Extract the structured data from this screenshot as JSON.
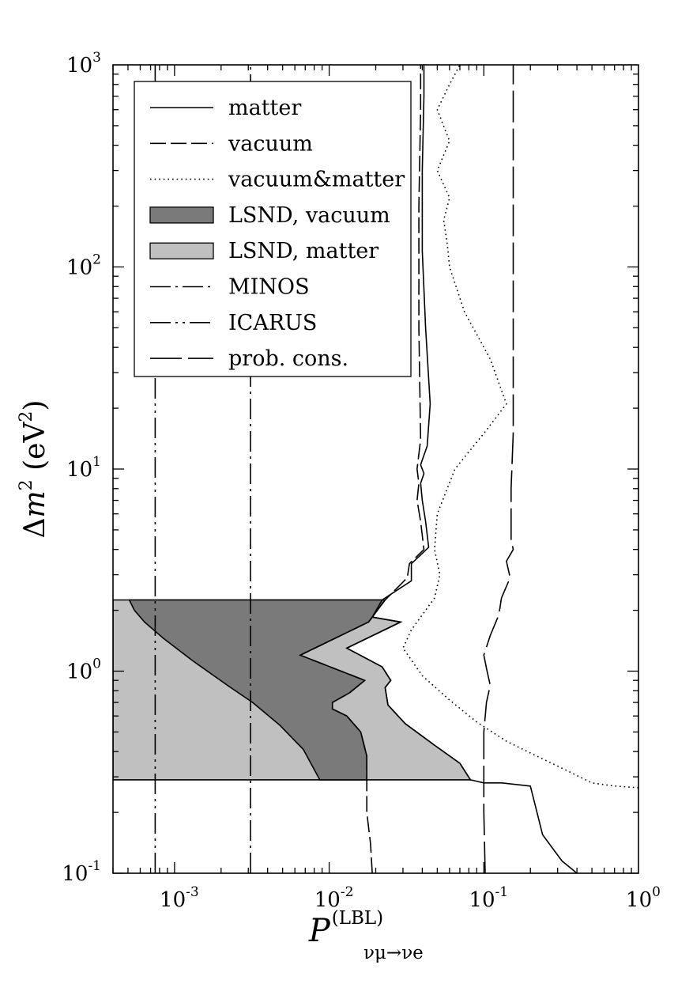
{
  "chart_data": {
    "type": "line",
    "title": "",
    "x_axis": {
      "label_base": "P",
      "label_superscript": "(LBL)",
      "label_subscript": "νμ→νe",
      "scale": "log",
      "range": [
        0.0004,
        1
      ],
      "ticks": [
        {
          "value": 0.001,
          "base": "10",
          "exp": "-3"
        },
        {
          "value": 0.01,
          "base": "10",
          "exp": "-2"
        },
        {
          "value": 0.1,
          "base": "10",
          "exp": "-1"
        },
        {
          "value": 1,
          "base": "10",
          "exp": "0"
        }
      ]
    },
    "y_axis": {
      "label_delta": "Δ",
      "label_m": "m",
      "label_m_exp": "2",
      "label_unit_open": " (eV",
      "label_unit_exp": "2",
      "label_unit_close": ")",
      "scale": "log",
      "range": [
        0.1,
        1000
      ],
      "ticks": [
        {
          "value": 0.1,
          "base": "10",
          "exp": "-1"
        },
        {
          "value": 1,
          "base": "10",
          "exp": "0"
        },
        {
          "value": 10,
          "base": "10",
          "exp": "1"
        },
        {
          "value": 100,
          "base": "10",
          "exp": "2"
        },
        {
          "value": 1000,
          "base": "10",
          "exp": "3"
        }
      ]
    },
    "grid": false,
    "legend": {
      "position": "top-left",
      "entries": [
        {
          "label": "matter",
          "style": "solid"
        },
        {
          "label": "vacuum",
          "style": "dashed"
        },
        {
          "label": "vacuum&matter",
          "style": "dotted"
        },
        {
          "label": "LSND, vacuum",
          "style": "fill-dark"
        },
        {
          "label": "LSND, matter",
          "style": "fill-light"
        },
        {
          "label": "MINOS",
          "style": "dashdot"
        },
        {
          "label": "ICARUS",
          "style": "dashdotdot"
        },
        {
          "label": "prob. cons.",
          "style": "longdash"
        }
      ]
    },
    "colors": {
      "lsnd_vacuum": "#7a7a7a",
      "lsnd_matter": "#c0c0c0",
      "line": "#000000"
    },
    "regions": [
      {
        "name": "LSND, matter",
        "points": [
          [
            0.0004,
            0.29
          ],
          [
            0.0004,
            2.25
          ],
          [
            0.022,
            2.25
          ],
          [
            0.019,
            1.85
          ],
          [
            0.029,
            1.75
          ],
          [
            0.013,
            1.3
          ],
          [
            0.022,
            1.05
          ],
          [
            0.025,
            0.9
          ],
          [
            0.023,
            0.83
          ],
          [
            0.024,
            0.68
          ],
          [
            0.031,
            0.55
          ],
          [
            0.048,
            0.43
          ],
          [
            0.07,
            0.35
          ],
          [
            0.082,
            0.29
          ]
        ]
      },
      {
        "name": "LSND, vacuum",
        "points": [
          [
            0.00051,
            2.25
          ],
          [
            0.00055,
            2.0
          ],
          [
            0.00064,
            1.75
          ],
          [
            0.00085,
            1.45
          ],
          [
            0.0013,
            1.13
          ],
          [
            0.0022,
            0.85
          ],
          [
            0.0032,
            0.7
          ],
          [
            0.0048,
            0.54
          ],
          [
            0.0068,
            0.41
          ],
          [
            0.0087,
            0.29
          ],
          [
            0.0175,
            0.29
          ],
          [
            0.0175,
            0.38
          ],
          [
            0.016,
            0.5
          ],
          [
            0.013,
            0.6
          ],
          [
            0.0105,
            0.65
          ],
          [
            0.0105,
            0.7
          ],
          [
            0.0135,
            0.78
          ],
          [
            0.017,
            0.9
          ],
          [
            0.0065,
            1.2
          ],
          [
            0.018,
            1.75
          ],
          [
            0.023,
            2.25
          ]
        ]
      }
    ],
    "series": [
      {
        "name": "matter",
        "style": "solid",
        "points": [
          [
            0.4,
            0.1
          ],
          [
            0.32,
            0.115
          ],
          [
            0.24,
            0.155
          ],
          [
            0.2,
            0.27
          ],
          [
            0.13,
            0.28
          ],
          [
            0.1,
            0.28
          ],
          [
            0.082,
            0.29
          ],
          [
            0.07,
            0.35
          ],
          [
            0.048,
            0.43
          ],
          [
            0.031,
            0.55
          ],
          [
            0.024,
            0.68
          ],
          [
            0.023,
            0.83
          ],
          [
            0.025,
            0.9
          ],
          [
            0.022,
            1.05
          ],
          [
            0.013,
            1.3
          ],
          [
            0.029,
            1.75
          ],
          [
            0.019,
            1.85
          ],
          [
            0.022,
            2.25
          ],
          [
            0.034,
            2.8
          ],
          [
            0.034,
            3.4
          ],
          [
            0.044,
            4.1
          ],
          [
            0.042,
            5.5
          ],
          [
            0.04,
            7.0
          ],
          [
            0.039,
            8.5
          ],
          [
            0.041,
            9.5
          ],
          [
            0.039,
            10.5
          ],
          [
            0.043,
            13
          ],
          [
            0.045,
            21
          ],
          [
            0.042,
            50
          ],
          [
            0.04,
            120
          ],
          [
            0.04,
            300
          ],
          [
            0.041,
            700
          ],
          [
            0.041,
            1000
          ]
        ]
      },
      {
        "name": "vacuum",
        "style": "dashed",
        "points": [
          [
            0.019,
            0.1
          ],
          [
            0.0185,
            0.14
          ],
          [
            0.0175,
            0.2
          ],
          [
            0.0175,
            0.38
          ],
          [
            0.016,
            0.5
          ],
          [
            0.013,
            0.6
          ],
          [
            0.0105,
            0.65
          ],
          [
            0.0105,
            0.7
          ],
          [
            0.0135,
            0.78
          ],
          [
            0.017,
            0.9
          ],
          [
            0.0065,
            1.2
          ],
          [
            0.018,
            1.75
          ],
          [
            0.023,
            2.25
          ],
          [
            0.032,
            2.9
          ],
          [
            0.033,
            3.4
          ],
          [
            0.041,
            4.0
          ],
          [
            0.039,
            5.5
          ],
          [
            0.037,
            7.0
          ],
          [
            0.038,
            8.5
          ],
          [
            0.037,
            10
          ],
          [
            0.039,
            14
          ],
          [
            0.038,
            50
          ],
          [
            0.038,
            200
          ],
          [
            0.039,
            600
          ],
          [
            0.039,
            1000
          ]
        ]
      },
      {
        "name": "vacuum&matter",
        "style": "dotted",
        "points": [
          [
            1,
            0.265
          ],
          [
            0.7,
            0.27
          ],
          [
            0.5,
            0.28
          ],
          [
            0.35,
            0.32
          ],
          [
            0.22,
            0.38
          ],
          [
            0.14,
            0.45
          ],
          [
            0.09,
            0.56
          ],
          [
            0.06,
            0.72
          ],
          [
            0.04,
            0.95
          ],
          [
            0.03,
            1.3
          ],
          [
            0.034,
            1.6
          ],
          [
            0.04,
            1.9
          ],
          [
            0.048,
            2.3
          ],
          [
            0.052,
            3.0
          ],
          [
            0.048,
            4.0
          ],
          [
            0.05,
            6.0
          ],
          [
            0.065,
            10
          ],
          [
            0.1,
            15
          ],
          [
            0.14,
            21
          ],
          [
            0.11,
            35
          ],
          [
            0.075,
            60
          ],
          [
            0.06,
            100
          ],
          [
            0.058,
            130
          ],
          [
            0.055,
            170
          ],
          [
            0.06,
            220
          ],
          [
            0.05,
            300
          ],
          [
            0.06,
            420
          ],
          [
            0.05,
            600
          ],
          [
            0.06,
            800
          ],
          [
            0.07,
            1000
          ]
        ]
      },
      {
        "name": "prob. cons.",
        "style": "longdash",
        "points": [
          [
            0.102,
            0.1
          ],
          [
            0.1,
            0.2
          ],
          [
            0.1,
            0.3
          ],
          [
            0.1,
            0.5
          ],
          [
            0.104,
            0.7
          ],
          [
            0.11,
            0.85
          ],
          [
            0.105,
            1.0
          ],
          [
            0.1,
            1.2
          ],
          [
            0.11,
            1.5
          ],
          [
            0.125,
            1.9
          ],
          [
            0.13,
            2.3
          ],
          [
            0.148,
            2.9
          ],
          [
            0.14,
            3.5
          ],
          [
            0.155,
            4.0
          ],
          [
            0.15,
            4.5
          ],
          [
            0.15,
            8.0
          ],
          [
            0.155,
            15
          ],
          [
            0.155,
            100
          ],
          [
            0.155,
            1000
          ]
        ]
      },
      {
        "name": "MINOS",
        "style": "dashdot",
        "points": [
          [
            0.0031,
            0.1
          ],
          [
            0.0031,
            1000
          ]
        ]
      },
      {
        "name": "ICARUS",
        "style": "dashdotdot",
        "points": [
          [
            0.00075,
            0.1
          ],
          [
            0.00075,
            1000
          ]
        ]
      }
    ]
  }
}
